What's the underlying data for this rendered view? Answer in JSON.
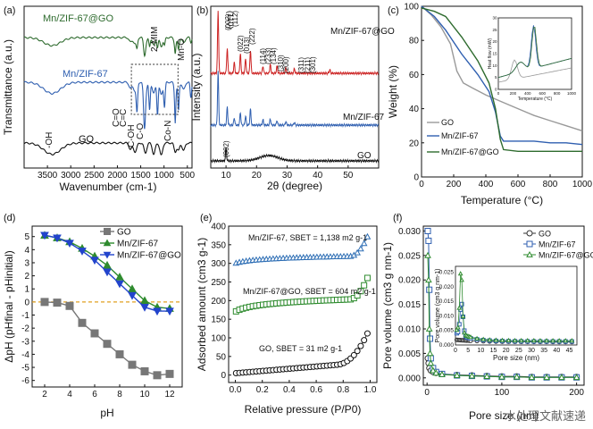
{
  "watermark": "水处理文献速递",
  "chart_data": [
    {
      "panel": "(a)",
      "type": "line",
      "xlabel": "Wavenumber (cm-1)",
      "ylabel": "Transmittance (a.u.)",
      "xlim": [
        4000,
        400
      ],
      "xticks": [
        3500,
        3000,
        2500,
        2000,
        1500,
        1000,
        500
      ],
      "series": [
        {
          "name": "Mn/ZIF-67@GO",
          "color": "#2e6b2e",
          "offset": 2.0
        },
        {
          "name": "Mn/ZIF-67",
          "color": "#2f5fb0",
          "offset": 1.0
        },
        {
          "name": "GO",
          "color": "#111111",
          "offset": 0.0
        }
      ],
      "annotations": [
        "-OH",
        "GO",
        "C=O",
        "C=C",
        "C-OH",
        "C-O",
        "2-MIM",
        "Co-N",
        "Mn-O"
      ]
    },
    {
      "panel": "(b)",
      "type": "line",
      "xlabel": "2θ (degree)",
      "ylabel": "Intensity (a.u.)",
      "xlim": [
        5,
        60
      ],
      "xticks": [
        10,
        20,
        30,
        40,
        50
      ],
      "series": [
        {
          "name": "Mn/ZIF-67@GO",
          "color": "#cc2222",
          "peaks": [
            7.4,
            10.4,
            12.7,
            14.7,
            16.4,
            18.0,
            22.1,
            24.5,
            26.7,
            29.6,
            32.4,
            44.0
          ]
        },
        {
          "name": "Mn/ZIF-67",
          "color": "#2f5fb0",
          "peaks": [
            7.4,
            10.4,
            12.7,
            14.7,
            16.4,
            18.0,
            22.1,
            24.5,
            26.7,
            29.6,
            32.4
          ]
        },
        {
          "name": "GO",
          "color": "#111111",
          "peaks": [
            10.0
          ]
        }
      ],
      "annotations": [
        "(110)",
        "(002)",
        "(112)",
        "(022)",
        "(013)",
        "(222)",
        "(114)",
        "(233)",
        "(134)",
        "(310)",
        "(200)",
        "(311)",
        "(211)",
        "(301)",
        "(002)"
      ]
    },
    {
      "panel": "(c)",
      "type": "line",
      "xlabel": "Temperature (°C)",
      "ylabel": "Weight (%)",
      "xlim": [
        0,
        1000
      ],
      "ylim": [
        0,
        100
      ],
      "xticks": [
        0,
        200,
        400,
        600,
        800,
        1000
      ],
      "yticks": [
        0,
        20,
        40,
        60,
        80,
        100
      ],
      "series": [
        {
          "name": "GO",
          "color": "#999999",
          "x": [
            0,
            60,
            120,
            180,
            220,
            260,
            320,
            400,
            500,
            600,
            700,
            800,
            900,
            1000
          ],
          "y": [
            100,
            95,
            88,
            78,
            62,
            55,
            52,
            48,
            44,
            40,
            36,
            33,
            30,
            27
          ]
        },
        {
          "name": "Mn/ZIF-67",
          "color": "#2f5fb0",
          "x": [
            0,
            80,
            150,
            250,
            350,
            420,
            460,
            490,
            510,
            600,
            700,
            800,
            900,
            1000
          ],
          "y": [
            100,
            94,
            86,
            72,
            60,
            50,
            38,
            24,
            21,
            21,
            21,
            20,
            20,
            19
          ]
        },
        {
          "name": "Mn/ZIF-67@GO",
          "color": "#2e6b2e",
          "x": [
            0,
            80,
            150,
            250,
            350,
            420,
            460,
            490,
            510,
            600,
            700,
            800,
            900,
            1000
          ],
          "y": [
            99,
            97,
            94,
            82,
            68,
            55,
            40,
            22,
            16,
            15,
            15,
            15,
            15,
            15
          ]
        }
      ],
      "inset": {
        "xlabel": "Temperature (°C)",
        "ylabel": "Heat flow (mW)",
        "xticks": [
          0,
          200,
          400,
          600,
          800,
          1000
        ],
        "yticks": [
          0,
          5,
          10,
          15,
          20,
          25,
          30
        ]
      }
    },
    {
      "panel": "(d)",
      "type": "line",
      "xlabel": "pH",
      "ylabel": "ΔpH (pHfinal - pHinitial)",
      "xlim": [
        1,
        13
      ],
      "ylim": [
        -6.5,
        5.8
      ],
      "xticks": [
        2,
        4,
        6,
        8,
        10,
        12
      ],
      "yticks": [
        -6,
        -5,
        -4,
        -3,
        -2,
        -1,
        0,
        1,
        2,
        3,
        4,
        5
      ],
      "series": [
        {
          "name": "GO",
          "color": "#777777",
          "marker": "square",
          "x": [
            2,
            3,
            4,
            5,
            6,
            7,
            8,
            9,
            10,
            11,
            12
          ],
          "y": [
            0.0,
            -0.05,
            -0.3,
            -1.6,
            -2.4,
            -3.2,
            -4.0,
            -4.8,
            -5.3,
            -5.6,
            -5.5
          ]
        },
        {
          "name": "Mn/ZIF-67",
          "color": "#2e8b2e",
          "marker": "triangle-up",
          "x": [
            2,
            3,
            4,
            5,
            6,
            7,
            8,
            9,
            10,
            11,
            12
          ],
          "y": [
            5.1,
            4.9,
            4.6,
            4.1,
            3.5,
            2.8,
            1.9,
            1.0,
            0.1,
            -0.4,
            -0.5
          ]
        },
        {
          "name": "Mn/ZIF-67@GO",
          "color": "#2244cc",
          "marker": "triangle-down",
          "x": [
            2,
            3,
            4,
            5,
            6,
            7,
            8,
            9,
            10,
            11,
            12
          ],
          "y": [
            5.1,
            4.9,
            4.5,
            3.9,
            3.2,
            2.3,
            1.4,
            0.5,
            -0.4,
            -0.7,
            -0.7
          ]
        }
      ],
      "reference_line": {
        "y": 0,
        "color": "#e0a020"
      }
    },
    {
      "panel": "(e)",
      "type": "scatter",
      "xlabel": "Relative pressure (P/P0)",
      "ylabel": "Adsorbed amount (cm3 g-1)",
      "xlim": [
        -0.05,
        1.05
      ],
      "ylim": [
        -20,
        400
      ],
      "xticks": [
        0.0,
        0.2,
        0.4,
        0.6,
        0.8,
        1.0
      ],
      "yticks": [
        0,
        50,
        100,
        150,
        200,
        250,
        300,
        350,
        400
      ],
      "series": [
        {
          "name": "Mn/ZIF-67, SBET = 1,138 m2 g-1",
          "color": "#2f6fb5",
          "marker": "triangle",
          "base": 300,
          "rise": 20,
          "top": 380
        },
        {
          "name": "Mn/ZIF-67@GO, SBET = 604 m2 g-1",
          "color": "#2e8b2e",
          "marker": "square",
          "base": 170,
          "rise": 35,
          "top": 270
        },
        {
          "name": "GO, SBET = 31 m2 g-1",
          "color": "#111111",
          "marker": "circle",
          "base": 5,
          "rise": 30,
          "top": 120
        }
      ]
    },
    {
      "panel": "(f)",
      "type": "line",
      "xlabel": "Pore size (nm)",
      "ylabel": "Pore volume (cm3 g nm-1)",
      "xlim": [
        -5,
        210
      ],
      "ylim": [
        -0.0015,
        0.031
      ],
      "xticks": [
        0,
        100,
        200
      ],
      "yticks": [
        0.0,
        0.005,
        0.01,
        0.015,
        0.02,
        0.025,
        0.03
      ],
      "series": [
        {
          "name": "GO",
          "color": "#333333",
          "marker": "circle",
          "x": [
            1,
            2,
            3,
            5,
            8,
            12,
            20,
            40,
            60,
            80,
            100,
            120,
            140,
            160,
            180,
            200
          ],
          "y": [
            0.004,
            0.003,
            0.002,
            0.0015,
            0.0012,
            0.001,
            0.0008,
            0.0006,
            0.0005,
            0.0004,
            0.0003,
            0.0003,
            0.0002,
            0.0002,
            0.0002,
            0.0002
          ]
        },
        {
          "name": "Mn/ZIF-67",
          "color": "#2f5fb0",
          "marker": "square",
          "x": [
            1,
            2,
            3,
            4,
            5,
            8,
            12,
            20,
            40,
            60,
            80,
            100,
            120,
            140,
            160,
            180,
            200
          ],
          "y": [
            0.03,
            0.028,
            0.018,
            0.008,
            0.004,
            0.002,
            0.0012,
            0.0008,
            0.0005,
            0.0004,
            0.0003,
            0.0002,
            0.0002,
            0.0001,
            0.0001,
            0.0001,
            0.0001
          ]
        },
        {
          "name": "Mn/ZIF-67@GO",
          "color": "#2e8b2e",
          "marker": "triangle",
          "x": [
            1,
            2,
            3,
            4,
            5,
            8,
            12,
            20,
            40,
            60,
            80,
            100,
            120,
            140,
            160,
            180,
            200
          ],
          "y": [
            0.025,
            0.02,
            0.01,
            0.005,
            0.003,
            0.0015,
            0.001,
            0.0007,
            0.0005,
            0.0004,
            0.0003,
            0.0002,
            0.0002,
            0.0001,
            0.0001,
            0.0001,
            0.0001
          ]
        }
      ],
      "inset": {
        "xlabel": "Pore size (nm)",
        "ylabel": "Pore volume (cm3 g nm-1)",
        "xticks": [
          0,
          5,
          10,
          15,
          20,
          25,
          30,
          35,
          40,
          45
        ],
        "yticks": [
          0.0,
          0.005,
          0.01,
          0.015,
          0.02,
          0.025
        ]
      }
    }
  ]
}
